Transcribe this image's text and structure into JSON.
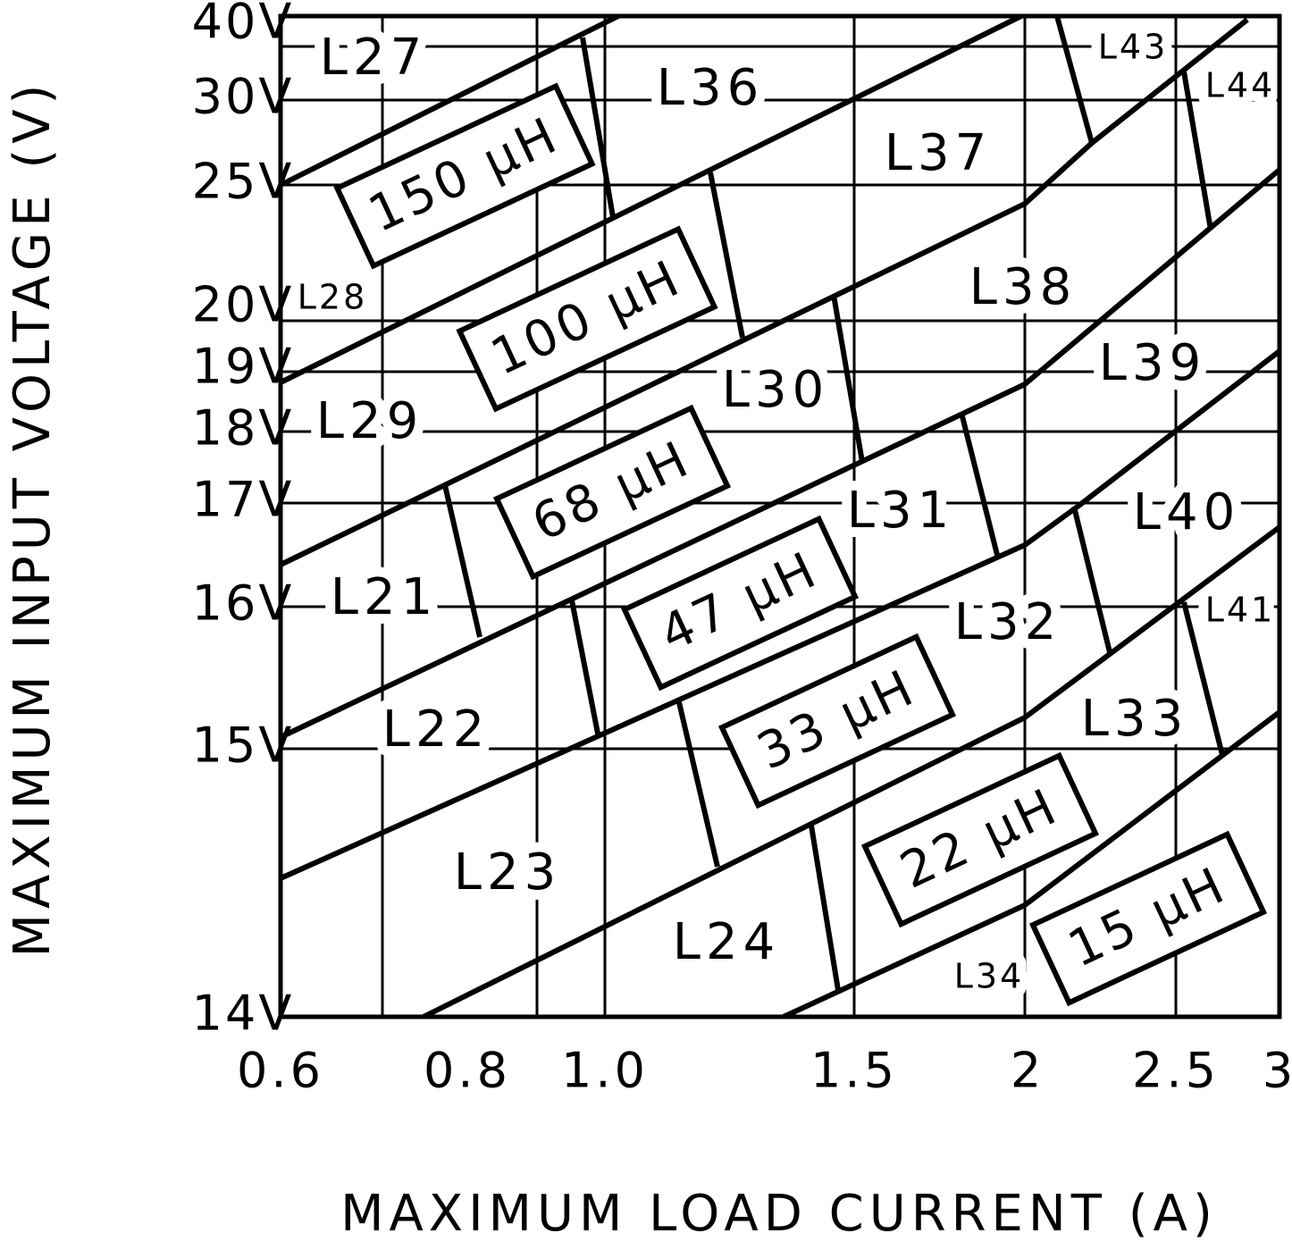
{
  "y_axis_title": "MAXIMUM INPUT VOLTAGE (V)",
  "x_axis_title": "MAXIMUM LOAD CURRENT (A)",
  "y_ticks": [
    "40V",
    "30V",
    "25V",
    "20V",
    "19V",
    "18V",
    "17V",
    "16V",
    "15V",
    "14V"
  ],
  "x_ticks": [
    "0.6",
    "0.8",
    "1.0",
    "1.5",
    "2",
    "2.5",
    "3"
  ],
  "regions": [
    "L27",
    "L36",
    "L37",
    "L38",
    "L39",
    "L40",
    "L43",
    "L44",
    "L41",
    "L28",
    "L29",
    "L30",
    "L31",
    "L32",
    "L33",
    "L21",
    "L22",
    "L23",
    "L24",
    "L34"
  ],
  "inductors": [
    "150 μH",
    "100 μH",
    "68 μH",
    "47 μH",
    "33 μH",
    "22 μH",
    "15 μH"
  ]
}
